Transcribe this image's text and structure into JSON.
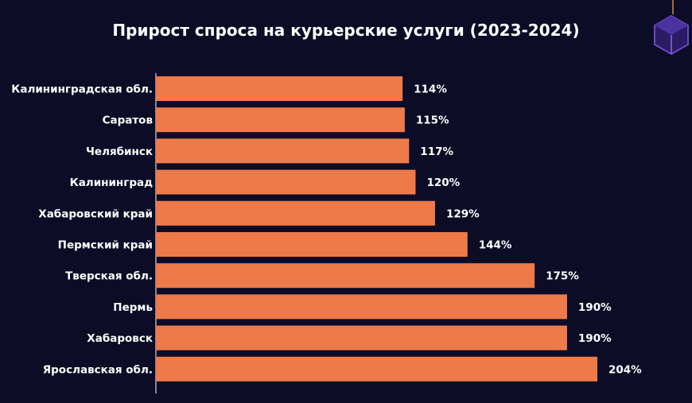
{
  "title": "Прирост спроса на курьерские услуги (2023-2024)",
  "colors": {
    "background": "#0d0c26",
    "bar": "#ee7a4a",
    "text": "#ffffff",
    "logo_accent": "#6a46c8"
  },
  "logo": {
    "icon": "cube-logo-icon"
  },
  "chart_data": {
    "type": "bar",
    "orientation": "horizontal",
    "title": "Прирост спроса на курьерские услуги (2023-2024)",
    "xlabel": "",
    "ylabel": "",
    "grid": false,
    "legend": "none",
    "unit": "%",
    "xlim": [
      0,
      210
    ],
    "categories": [
      "Калининградская обл.",
      "Саратов",
      "Челябинск",
      "Калининград",
      "Хабаровский край",
      "Пермский край",
      "Тверская обл.",
      "Пермь",
      "Хабаровск",
      "Ярославская обл."
    ],
    "values": [
      114,
      115,
      117,
      120,
      129,
      144,
      175,
      190,
      190,
      204
    ],
    "value_labels": [
      "114%",
      "115%",
      "117%",
      "120%",
      "129%",
      "144%",
      "175%",
      "190%",
      "190%",
      "204%"
    ]
  }
}
